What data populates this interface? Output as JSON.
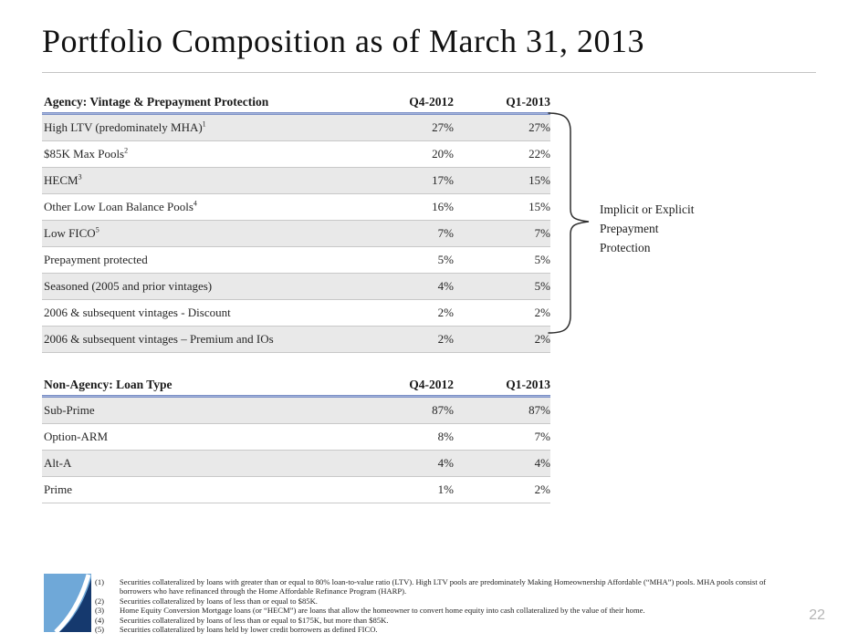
{
  "slide": {
    "title": "Portfolio Composition as of March 31, 2013",
    "page_number": "22"
  },
  "tables": [
    {
      "header": {
        "label": "Agency: Vintage & Prepayment Protection",
        "col1": "Q4-2012",
        "col2": "Q1-2013"
      },
      "rows": [
        {
          "label": "High LTV (predominately MHA)",
          "sup": "1",
          "q4": "27%",
          "q1": "27%"
        },
        {
          "label": "$85K Max Pools",
          "sup": "2",
          "q4": "20%",
          "q1": "22%"
        },
        {
          "label": "HECM",
          "sup": "3",
          "q4": "17%",
          "q1": "15%"
        },
        {
          "label": "Other Low Loan Balance Pools",
          "sup": "4",
          "q4": "16%",
          "q1": "15%"
        },
        {
          "label": "Low FICO",
          "sup": "5",
          "q4": "7%",
          "q1": "7%"
        },
        {
          "label": "Prepayment protected",
          "sup": "",
          "q4": "5%",
          "q1": "5%"
        },
        {
          "label": "Seasoned (2005 and prior vintages)",
          "sup": "",
          "q4": "4%",
          "q1": "5%"
        },
        {
          "label": "2006 & subsequent vintages - Discount",
          "sup": "",
          "q4": "2%",
          "q1": "2%"
        },
        {
          "label": "2006 & subsequent vintages – Premium and IOs",
          "sup": "",
          "q4": "2%",
          "q1": "2%"
        }
      ]
    },
    {
      "header": {
        "label": "Non-Agency: Loan Type",
        "col1": "Q4-2012",
        "col2": "Q1-2013"
      },
      "rows": [
        {
          "label": "Sub-Prime",
          "sup": "",
          "q4": "87%",
          "q1": "87%"
        },
        {
          "label": "Option-ARM",
          "sup": "",
          "q4": "8%",
          "q1": "7%"
        },
        {
          "label": "Alt-A",
          "sup": "",
          "q4": "4%",
          "q1": "4%"
        },
        {
          "label": "Prime",
          "sup": "",
          "q4": "1%",
          "q1": "2%"
        }
      ]
    }
  ],
  "annotation": {
    "text": "Implicit or Explicit\nPrepayment\nProtection"
  },
  "footnotes": [
    {
      "num": "(1)",
      "text": "Securities collateralized by loans with greater than or equal to 80% loan-to-value ratio (LTV). High LTV pools are predominately Making Homeownership Affordable (“MHA”) pools. MHA pools consist of borrowers who have refinanced through the Home Affordable Refinance Program (HARP)."
    },
    {
      "num": "(2)",
      "text": "Securities collateralized by loans of less than or equal to $85K."
    },
    {
      "num": "(3)",
      "text": "Home Equity Conversion Mortgage loans (or “HECM”) are loans that allow the homeowner to convert home equity into cash collateralized by the value of their home."
    },
    {
      "num": "(4)",
      "text": "Securities collateralized by loans of less than or equal to $175K, but more than $85K."
    },
    {
      "num": "(5)",
      "text": "Securities collateralized by loans held by lower credit borrowers as defined FICO."
    }
  ],
  "colors": {
    "blue-band": "#5f77b7",
    "row-shade": "#e9e9e9",
    "row-border": "#c8c8c8",
    "rule": "#c4c4c4",
    "page-num": "#b5b5b5",
    "logo-light": "#6fa8d8",
    "logo-dark": "#15396e",
    "bracket": "#2e2e2e"
  }
}
